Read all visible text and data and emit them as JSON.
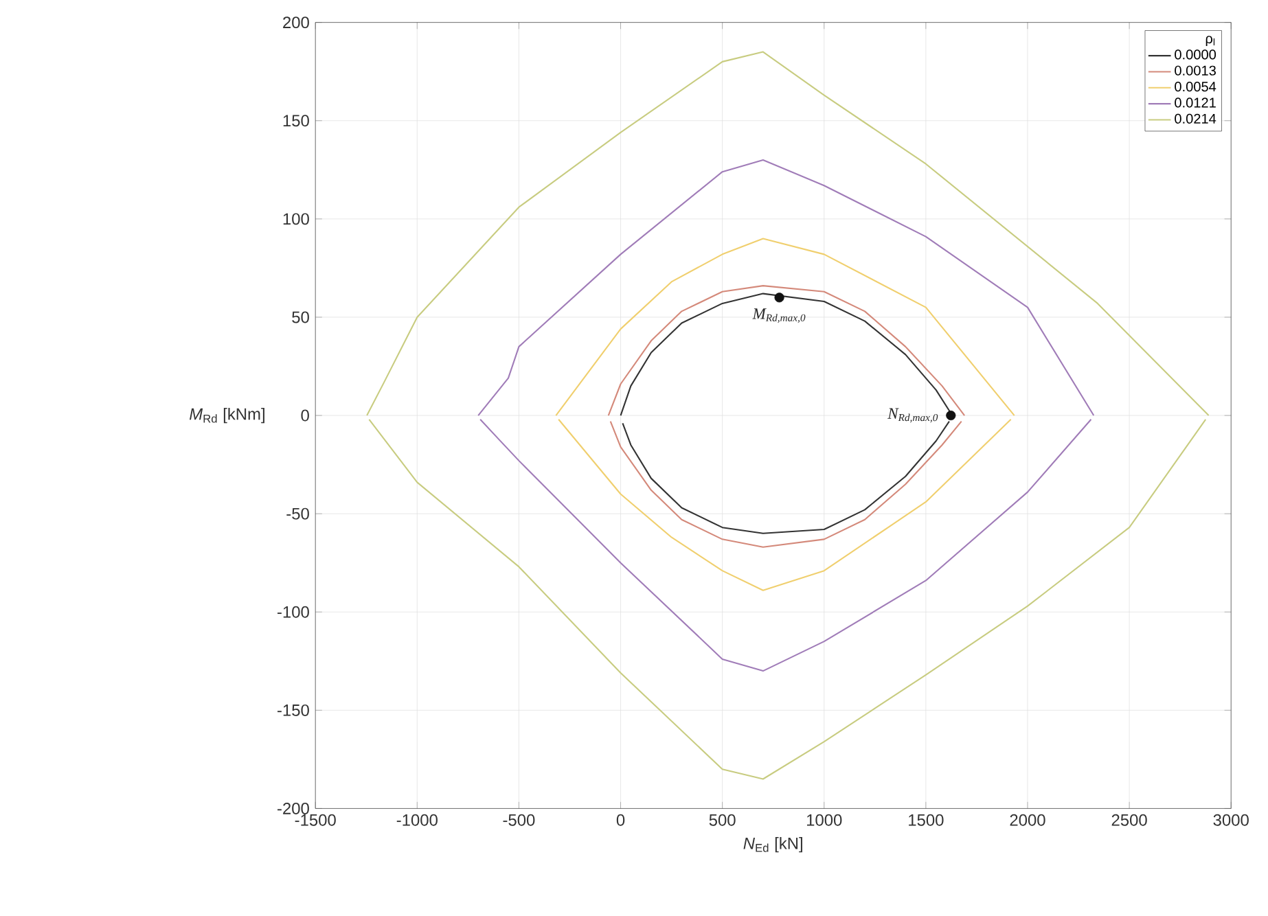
{
  "chart_data": {
    "type": "line",
    "xlabel": "*N*$_{Ed}$ [kN]",
    "ylabel": "*M*$_{Rd}$ [kNm]",
    "legend_title": "ρ$_{l}$",
    "xlim": [
      -1500,
      3000
    ],
    "ylim": [
      -200,
      200
    ],
    "xticks": [
      -1500,
      -1000,
      -500,
      0,
      500,
      1000,
      1500,
      2000,
      2500,
      3000
    ],
    "yticks": [
      -200,
      -150,
      -100,
      -50,
      0,
      50,
      100,
      150,
      200
    ],
    "grid": true,
    "legend": "top right",
    "marker": "none",
    "line_style": "solid",
    "series": [
      {
        "name": "0.0000",
        "color": "#333333",
        "x": [
          0,
          50,
          150,
          300,
          500,
          700,
          1000,
          1200,
          1400,
          1550,
          1630
        ],
        "values": [
          0,
          15,
          32,
          47,
          57,
          62,
          58,
          48,
          31,
          13,
          0
        ]
      },
      {
        "color": "#333333",
        "x": [
          10,
          50,
          150,
          300,
          500,
          700,
          1000,
          1200,
          1400,
          1550,
          1615
        ],
        "values": [
          -4,
          -15,
          -32,
          -47,
          -57,
          -60,
          -58,
          -48,
          -31,
          -13,
          -3
        ]
      },
      {
        "name": "0.0013",
        "color": "#d4897a",
        "x": [
          -60,
          0,
          150,
          300,
          500,
          700,
          1000,
          1200,
          1400,
          1580,
          1690
        ],
        "values": [
          0,
          16,
          38,
          53,
          63,
          66,
          63,
          53,
          35,
          15,
          0
        ]
      },
      {
        "color": "#d4897a",
        "x": [
          -50,
          0,
          150,
          300,
          500,
          700,
          1000,
          1200,
          1400,
          1580,
          1675
        ],
        "values": [
          -3,
          -16,
          -38,
          -53,
          -63,
          -67,
          -63,
          -53,
          -35,
          -15,
          -3
        ]
      },
      {
        "name": "0.0054",
        "color": "#f0cf6e",
        "x": [
          -318,
          0,
          250,
          500,
          700,
          1000,
          1500,
          1935
        ],
        "values": [
          0,
          44,
          68,
          82,
          90,
          82,
          55,
          0
        ]
      },
      {
        "color": "#f0cf6e",
        "x": [
          -305,
          0,
          250,
          500,
          700,
          1000,
          1500,
          1918
        ],
        "values": [
          -2,
          -40,
          -62,
          -79,
          -89,
          -79,
          -44,
          -2
        ]
      },
      {
        "name": "0.0121",
        "color": "#a07cb8",
        "x": [
          -700,
          -552,
          -500,
          0,
          500,
          700,
          1000,
          1500,
          2000,
          2325
        ],
        "values": [
          0,
          19,
          35,
          82,
          124,
          130,
          117,
          91,
          55,
          0
        ]
      },
      {
        "color": "#a07cb8",
        "x": [
          -690,
          -600,
          -500,
          0,
          500,
          700,
          1000,
          1500,
          2000,
          2312
        ],
        "values": [
          -2,
          -12,
          -23,
          -75,
          -124,
          -130,
          -115,
          -84,
          -39,
          -2
        ]
      },
      {
        "name": "0.0214",
        "color": "#c8cc80",
        "x": [
          -1247,
          -1162,
          -1000,
          -500,
          0,
          500,
          700,
          1000,
          1500,
          2344,
          2890
        ],
        "values": [
          0,
          17,
          50,
          106,
          144,
          180,
          185,
          163,
          128,
          57,
          0
        ]
      },
      {
        "color": "#c8cc80",
        "x": [
          -1236,
          -1000,
          -500,
          0,
          500,
          700,
          1000,
          1500,
          2000,
          2500,
          2875
        ],
        "values": [
          -2,
          -34,
          -77,
          -131,
          -180,
          -185,
          -166,
          -132,
          -97,
          -57,
          -2
        ]
      },
      {
        "type": "scatter",
        "color": "#111111",
        "marker": "circle",
        "x": [
          780,
          1623
        ],
        "values": [
          60,
          0
        ]
      }
    ],
    "annotations": [
      {
        "text": "M$_{Rd,max,0}$",
        "x": 780,
        "y": 60
      },
      {
        "text": "N$_{Rd,max,0}$",
        "x": 1623,
        "y": 0
      }
    ]
  }
}
